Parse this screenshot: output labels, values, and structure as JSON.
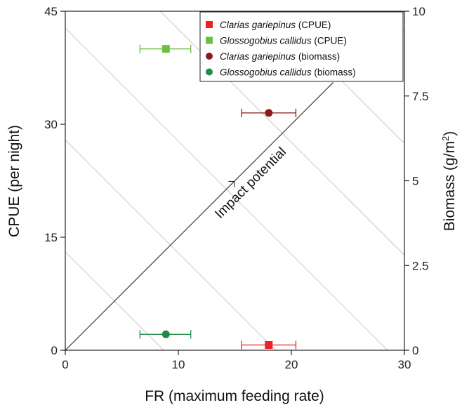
{
  "chart_data": {
    "type": "scatter",
    "x_axis": {
      "label": "FR (maximum feeding rate)",
      "range": [
        0,
        30
      ],
      "ticks": [
        0,
        10,
        20,
        30
      ],
      "tick_labels": [
        "0",
        "10",
        "20",
        "30"
      ]
    },
    "y_left_axis": {
      "label": "CPUE (per night)",
      "range": [
        0,
        45
      ],
      "ticks": [
        0,
        15,
        30,
        45
      ],
      "tick_labels": [
        "0",
        "15",
        "30",
        "45"
      ]
    },
    "y_right_axis": {
      "label_main": "Biomass (g/m",
      "label_sup": "2",
      "label_end": ")",
      "range": [
        0,
        10
      ],
      "ticks": [
        0,
        2.5,
        5,
        7.5,
        10
      ],
      "tick_labels": [
        "0",
        "2.5",
        "5",
        "7.5",
        "10"
      ]
    },
    "series": [
      {
        "species": "Clarias gariepinus",
        "suffix": " (CPUE)",
        "axis": "left",
        "marker": "square",
        "color": "#ee2024",
        "x": 18.0,
        "y": 0.7,
        "x_err_low": 15.6,
        "x_err_high": 20.4
      },
      {
        "species": "Glossogobius callidus",
        "suffix": " (CPUE)",
        "axis": "left",
        "marker": "square",
        "color": "#6dbf44",
        "x": 8.9,
        "y": 40.0,
        "x_err_low": 6.6,
        "x_err_high": 11.1
      },
      {
        "species": "Clarias gariepinus",
        "suffix": " (biomass)",
        "axis": "right",
        "marker": "circle",
        "color": "#8b1a1a",
        "x": 18.0,
        "y": 7.0,
        "x_err_low": 15.6,
        "x_err_high": 20.4
      },
      {
        "species": "Glossogobius callidus",
        "suffix": " (biomass)",
        "axis": "right",
        "marker": "circle",
        "color": "#1e8c45",
        "x": 8.9,
        "y": 0.47,
        "x_err_low": 6.6,
        "x_err_high": 11.1
      }
    ],
    "annotation": "Impact potential",
    "legend_position": "top-right",
    "grid": false
  }
}
